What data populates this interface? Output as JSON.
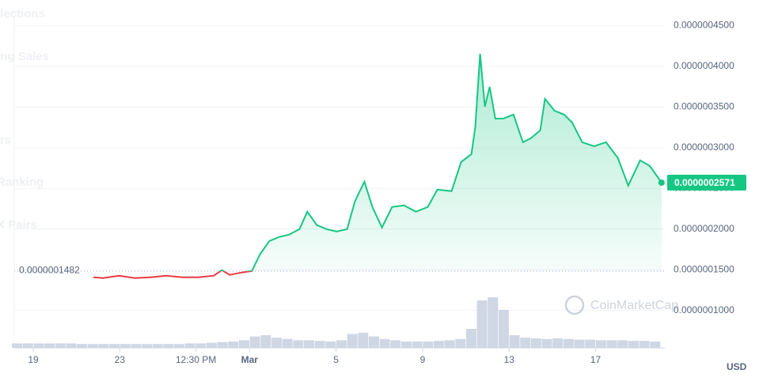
{
  "chart_data": {
    "type": "line",
    "background_texts": [
      "llections",
      "ing Sales",
      "irs",
      "Ranking",
      "X Pairs"
    ],
    "watermark": "CoinMarketCap",
    "currency": "USD",
    "xlim": [
      -0.88,
      29.2
    ],
    "xticks": [
      {
        "value": 0,
        "label": "19"
      },
      {
        "value": 4,
        "label": "23"
      },
      {
        "value": 7.52,
        "label": "12:30 PM"
      },
      {
        "value": 10,
        "label": "Mar"
      },
      {
        "value": 14,
        "label": "5"
      },
      {
        "value": 18,
        "label": "9"
      },
      {
        "value": 22,
        "label": "13"
      },
      {
        "value": 26,
        "label": "17"
      }
    ],
    "ylim": [
      5.4e-08,
      4.7e-07
    ],
    "yticks": [
      {
        "value": 1e-07,
        "label": "0.0000001000"
      },
      {
        "value": 1.5e-07,
        "label": "0.0000001500"
      },
      {
        "value": 2e-07,
        "label": "0.0000002000"
      },
      {
        "value": 2.5e-07,
        "label": "0.0000002500"
      },
      {
        "value": 3e-07,
        "label": "0.0000003000"
      },
      {
        "value": 3.5e-07,
        "label": "0.0000003500"
      },
      {
        "value": 4e-07,
        "label": "0.0000004000"
      },
      {
        "value": 4.5e-07,
        "label": "0.0000004500"
      }
    ],
    "grid": true,
    "baseline": {
      "value": 1.482e-07,
      "label": "0.0000001482"
    },
    "series": [
      {
        "color": "#16c784",
        "down_color": "#ea3943",
        "last_label": "0.0000002571",
        "x": [
          2.78,
          3.22,
          3.96,
          4.69,
          5.42,
          6.15,
          6.89,
          7.62,
          8.35,
          8.72,
          9.08,
          9.63,
          10.11,
          10.48,
          10.92,
          11.36,
          11.83,
          12.31,
          12.67,
          13.11,
          13.55,
          14.03,
          14.51,
          14.87,
          15.31,
          15.68,
          16.12,
          16.59,
          17.14,
          17.69,
          18.24,
          18.68,
          19.34,
          19.78,
          20.26,
          20.44,
          20.66,
          20.88,
          21.1,
          21.36,
          21.72,
          22.2,
          22.64,
          23.0,
          23.44,
          23.66,
          24.1,
          24.54,
          24.91,
          25.38,
          25.93,
          26.48,
          27.03,
          27.51,
          28.06,
          28.5,
          29.05
        ],
        "values": [
          1.408e-07,
          1.398e-07,
          1.427e-07,
          1.398e-07,
          1.408e-07,
          1.427e-07,
          1.408e-07,
          1.408e-07,
          1.427e-07,
          1.495e-07,
          1.437e-07,
          1.466e-07,
          1.485e-07,
          1.689e-07,
          1.854e-07,
          1.903e-07,
          1.932e-07,
          2e-07,
          2.214e-07,
          2.049e-07,
          2e-07,
          1.971e-07,
          2e-07,
          2.34e-07,
          2.583e-07,
          2.272e-07,
          2.019e-07,
          2.272e-07,
          2.291e-07,
          2.214e-07,
          2.272e-07,
          2.485e-07,
          2.466e-07,
          2.825e-07,
          2.922e-07,
          3.262e-07,
          4.155e-07,
          3.505e-07,
          3.748e-07,
          3.359e-07,
          3.359e-07,
          3.408e-07,
          3.068e-07,
          3.117e-07,
          3.214e-07,
          3.602e-07,
          3.456e-07,
          3.408e-07,
          3.311e-07,
          3.068e-07,
          3.019e-07,
          3.068e-07,
          2.874e-07,
          2.534e-07,
          2.845e-07,
          2.777e-07,
          2.571e-07
        ]
      },
      {
        "type": "bar",
        "axis": "y2",
        "color": "#cfd6e4",
        "x": [
          -0.75,
          -0.25,
          0.25,
          0.75,
          1.25,
          1.75,
          2.25,
          2.75,
          3.25,
          3.75,
          4.25,
          4.75,
          5.25,
          5.75,
          6.25,
          6.75,
          7.25,
          7.75,
          8.25,
          8.75,
          9.25,
          9.75,
          10.25,
          10.75,
          11.25,
          11.75,
          12.25,
          12.75,
          13.25,
          13.75,
          14.25,
          14.75,
          15.25,
          15.75,
          16.25,
          16.75,
          17.25,
          17.75,
          18.25,
          18.75,
          19.25,
          19.75,
          20.25,
          20.75,
          21.25,
          21.75,
          22.25,
          22.75,
          23.25,
          23.75,
          24.25,
          24.75,
          25.25,
          25.75,
          26.25,
          26.75,
          27.25,
          27.75,
          28.25,
          28.75
        ],
        "values": [
          7,
          7,
          7,
          7,
          7,
          7,
          6,
          6,
          6,
          6,
          6,
          6,
          6,
          6,
          6,
          6,
          7,
          7,
          8,
          9,
          10,
          12,
          18,
          20,
          16,
          14,
          12,
          12,
          11,
          10,
          12,
          22,
          24,
          18,
          14,
          12,
          10,
          10,
          10,
          11,
          12,
          14,
          30,
          75,
          80,
          60,
          20,
          16,
          15,
          14,
          15,
          14,
          13,
          13,
          12,
          12,
          12,
          11,
          11,
          10
        ]
      }
    ],
    "y2lim": [
      0,
      100
    ]
  }
}
